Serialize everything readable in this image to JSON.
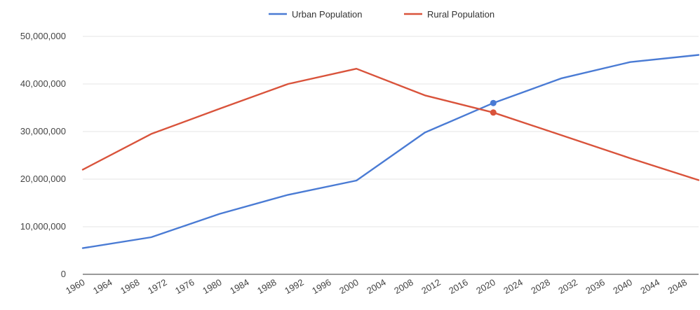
{
  "chart_data": {
    "type": "line",
    "title": "",
    "xlabel": "",
    "ylabel": "",
    "x": [
      1960,
      1970,
      1980,
      1990,
      2000,
      2010,
      2020,
      2030,
      2040,
      2050
    ],
    "series": [
      {
        "name": "Urban Population",
        "color": "#4a7bd4",
        "values": [
          5500000,
          7800000,
          12700000,
          16700000,
          19700000,
          29800000,
          36000000,
          41200000,
          44600000,
          46100000
        ],
        "highlight_x": 2020,
        "highlight_value": 36000000
      },
      {
        "name": "Rural Population",
        "color": "#d9533b",
        "values": [
          22000000,
          29500000,
          34800000,
          40000000,
          43200000,
          37600000,
          34000000,
          29200000,
          24400000,
          19800000
        ],
        "highlight_x": 2020,
        "highlight_value": 34000000
      }
    ],
    "ylim": [
      0,
      50000000
    ],
    "y_ticks": [
      "0",
      "10,000,000",
      "20,000,000",
      "30,000,000",
      "40,000,000",
      "50,000,000"
    ],
    "x_ticks": [
      "1960",
      "1964",
      "1968",
      "1972",
      "1976",
      "1980",
      "1984",
      "1988",
      "1992",
      "1996",
      "2000",
      "2004",
      "2008",
      "2012",
      "2016",
      "2020",
      "2024",
      "2028",
      "2032",
      "2036",
      "2040",
      "2044",
      "2048"
    ],
    "grid": true,
    "legend_position": "top-center"
  }
}
